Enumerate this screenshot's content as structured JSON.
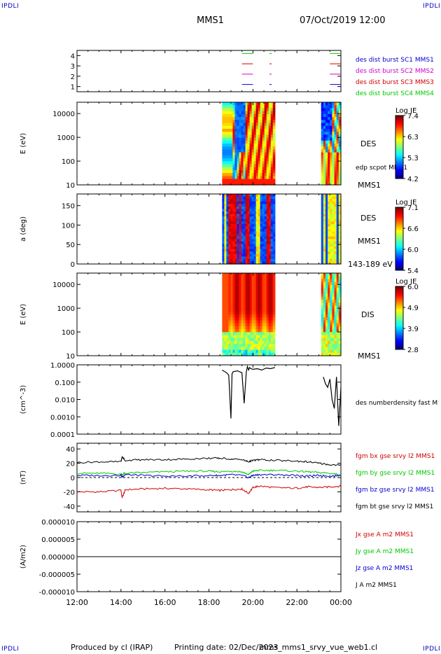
{
  "corner_label": "IPDLI",
  "header": {
    "spacecraft": "MMS1",
    "date": "07/Oct/2019 12:00"
  },
  "footer": {
    "produced_by": "Produced by cl (IRAP)",
    "printing_date": "Printing date: 02/Dec/2023",
    "file_name": "mms_mms1_srvy_vue_web1.cl"
  },
  "colors": {
    "black": "#000000",
    "blue": "#0000d0",
    "magenta": "#d000d0",
    "red": "#d00000",
    "green": "#00c800"
  },
  "chart_data": [
    {
      "type": "line",
      "panel": "burst availability",
      "y_ticks": [
        "1",
        "2",
        "3",
        "4"
      ],
      "ylim": [
        0.5,
        4.5
      ],
      "legend": [
        {
          "label": "des dist burst SC1 MMS1",
          "color": "#0000d0"
        },
        {
          "label": "des dist burst SC2 MMS2",
          "color": "#d000d0"
        },
        {
          "label": "des dist burst SC3 MMS3",
          "color": "#d00000"
        },
        {
          "label": "des dist burst SC4 MMS4",
          "color": "#00c800"
        }
      ],
      "intervals_hours": [
        [
          19.5,
          20.0
        ],
        [
          20.75,
          20.85
        ],
        [
          23.5,
          24.0
        ]
      ]
    },
    {
      "type": "heatmap",
      "panel": "DES energy spectrogram",
      "ylabel": "E (eV)",
      "y_ticks": [
        "10",
        "100",
        "1000",
        "10000"
      ],
      "yscale": "log",
      "ylim": [
        10,
        30000
      ],
      "data_intervals_hours": [
        [
          18.6,
          21.0
        ],
        [
          23.1,
          24.0
        ]
      ],
      "label": "DES",
      "sub_label": "edp scpot MMS1",
      "spacecraft_label": "MMS1",
      "colorbar": {
        "title": "Log JE",
        "ticks": [
          "7.4",
          "6.3",
          "5.3",
          "4.2"
        ]
      }
    },
    {
      "type": "heatmap",
      "panel": "DES pitch angle",
      "ylabel": "a (deg)",
      "y_ticks": [
        "0",
        "50",
        "100",
        "150"
      ],
      "ylim": [
        0,
        180
      ],
      "data_intervals_hours": [
        [
          18.6,
          21.0
        ],
        [
          23.1,
          24.0
        ]
      ],
      "label": "DES",
      "spacecraft_label": "MMS1",
      "energy_range": "143-189 eV",
      "colorbar": {
        "title": "Log JE",
        "ticks": [
          "7.1",
          "6.6",
          "6.0",
          "5.4"
        ]
      }
    },
    {
      "type": "heatmap",
      "panel": "DIS energy spectrogram",
      "ylabel": "E (eV)",
      "y_ticks": [
        "10",
        "100",
        "1000",
        "10000"
      ],
      "yscale": "log",
      "ylim": [
        10,
        30000
      ],
      "data_intervals_hours": [
        [
          18.6,
          21.0
        ],
        [
          23.1,
          24.0
        ]
      ],
      "label": "DIS",
      "spacecraft_label": "MMS1",
      "colorbar": {
        "title": "Log JE",
        "ticks": [
          "6.0",
          "4.9",
          "3.9",
          "2.8"
        ]
      }
    },
    {
      "type": "line",
      "panel": "number density",
      "ylabel": "(cm^-3)",
      "yscale": "log",
      "y_ticks": [
        "1.0000",
        "0.100",
        "0.010",
        "0.0010",
        "0.0001"
      ],
      "ylim": [
        0.0001,
        1.0
      ],
      "series": [
        {
          "name": "des numberdensity fast M",
          "color": "#000000",
          "x": [
            18.6,
            18.8,
            18.9,
            19.0,
            19.05,
            19.1,
            19.3,
            19.5,
            19.6,
            19.7,
            19.75,
            19.8,
            19.85,
            19.9,
            20.0,
            20.2,
            20.4,
            20.6,
            20.8,
            21.0,
            23.2,
            23.3,
            23.4,
            23.5,
            23.6,
            23.7,
            23.8,
            23.9,
            24.0
          ],
          "y": [
            0.5,
            0.35,
            0.25,
            0.0008,
            0.3,
            0.4,
            0.45,
            0.35,
            0.006,
            0.4,
            0.8,
            0.5,
            0.7,
            0.6,
            0.55,
            0.6,
            0.5,
            0.65,
            0.6,
            0.7,
            0.2,
            0.08,
            0.05,
            0.15,
            0.01,
            0.003,
            0.2,
            0.0003,
            0.05
          ]
        }
      ]
    },
    {
      "type": "line",
      "panel": "magnetic field",
      "ylabel": "(nT)",
      "y_ticks": [
        "-40",
        "-20",
        "0",
        "20",
        "40"
      ],
      "ylim": [
        -48,
        48
      ],
      "x": [
        12,
        13,
        14,
        14.05,
        14.2,
        15,
        16,
        17,
        18,
        18.5,
        19,
        19.5,
        19.8,
        20,
        20.3,
        21,
        22,
        22.5,
        23,
        23.5,
        24
      ],
      "series": [
        {
          "name": "fgm bx gse srvy l2 MMS1",
          "color": "#d00000",
          "y": [
            -20,
            -20,
            -18,
            -28,
            -17,
            -16,
            -15,
            -16,
            -17,
            -18,
            -17,
            -16,
            -22,
            -14,
            -12,
            -14,
            -15,
            -13,
            -14,
            -13,
            -12
          ]
        },
        {
          "name": "fgm by gse srvy l2 MMS1",
          "color": "#00c800",
          "y": [
            6,
            6,
            5,
            4,
            6,
            7,
            8,
            9,
            9,
            8,
            9,
            8,
            4,
            9,
            10,
            10,
            9,
            8,
            7,
            6,
            4
          ]
        },
        {
          "name": "fgm bz gse srvy l2 MMS1",
          "color": "#0000d0",
          "y": [
            3,
            3,
            3,
            1,
            4,
            3,
            2,
            2,
            3,
            3,
            4,
            3,
            0,
            3,
            4,
            4,
            3,
            2,
            3,
            2,
            3
          ]
        },
        {
          "name": "fgm bt gse srvy l2 MMS1",
          "color": "#000000",
          "y": [
            21,
            22,
            22,
            29,
            24,
            25,
            25,
            26,
            27,
            27,
            26,
            25,
            22,
            24,
            25,
            24,
            23,
            22,
            20,
            18,
            17
          ]
        }
      ]
    },
    {
      "type": "line",
      "panel": "current density",
      "ylabel": "(A/m2)",
      "y_ticks": [
        "0.000010",
        "0.000005",
        "0.000000",
        "-0.000005",
        "-0.000010"
      ],
      "ylim": [
        -1e-05,
        1e-05
      ],
      "x": [
        12,
        24
      ],
      "series": [
        {
          "name": "Jx gse A m2 MMS1",
          "color": "#d00000",
          "y": [
            0,
            0
          ]
        },
        {
          "name": "Jy gse A m2 MMS1",
          "color": "#00c800",
          "y": [
            0,
            0
          ]
        },
        {
          "name": "Jz gse A m2 MMS1",
          "color": "#0000d0",
          "y": [
            0,
            0
          ]
        },
        {
          "name": "J A m2 MMS1",
          "color": "#000000",
          "y": [
            0,
            0
          ]
        }
      ]
    }
  ],
  "x_axis": {
    "ticks": [
      "12:00",
      "14:00",
      "16:00",
      "18:00",
      "20:00",
      "22:00",
      "00:00"
    ],
    "xlim_hours": [
      12,
      24
    ]
  }
}
